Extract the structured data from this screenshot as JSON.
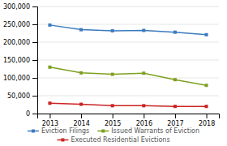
{
  "chart_data": {
    "type": "line",
    "categories": [
      "2013",
      "2014",
      "2015",
      "2016",
      "2017",
      "2018"
    ],
    "series": [
      {
        "name": "Eviction Filings",
        "color": "#3a7abf",
        "marker": "square",
        "values": [
          248000,
          235000,
          232000,
          233000,
          228000,
          221000
        ]
      },
      {
        "name": "Issued Warrants of Eviction",
        "color": "#7da020",
        "marker": "square",
        "values": [
          130000,
          114000,
          110000,
          113000,
          95000,
          79000
        ]
      },
      {
        "name": "Executed Residential Evictions",
        "color": "#cc2222",
        "marker": "square",
        "values": [
          29000,
          26000,
          22000,
          22000,
          20000,
          20000
        ]
      }
    ],
    "ylim": [
      0,
      300000
    ],
    "yticks": [
      0,
      {
        "value": 50000,
        "label": "50,000"
      },
      {
        "value": 100000,
        "label": "100,000"
      },
      {
        "value": 150000,
        "label": "150,000"
      },
      {
        "value": 200000,
        "label": "200,000"
      },
      {
        "value": 250000,
        "label": "250,000"
      },
      {
        "value": 300000,
        "label": "300,000"
      }
    ],
    "grid": true,
    "legend": "bottom"
  }
}
